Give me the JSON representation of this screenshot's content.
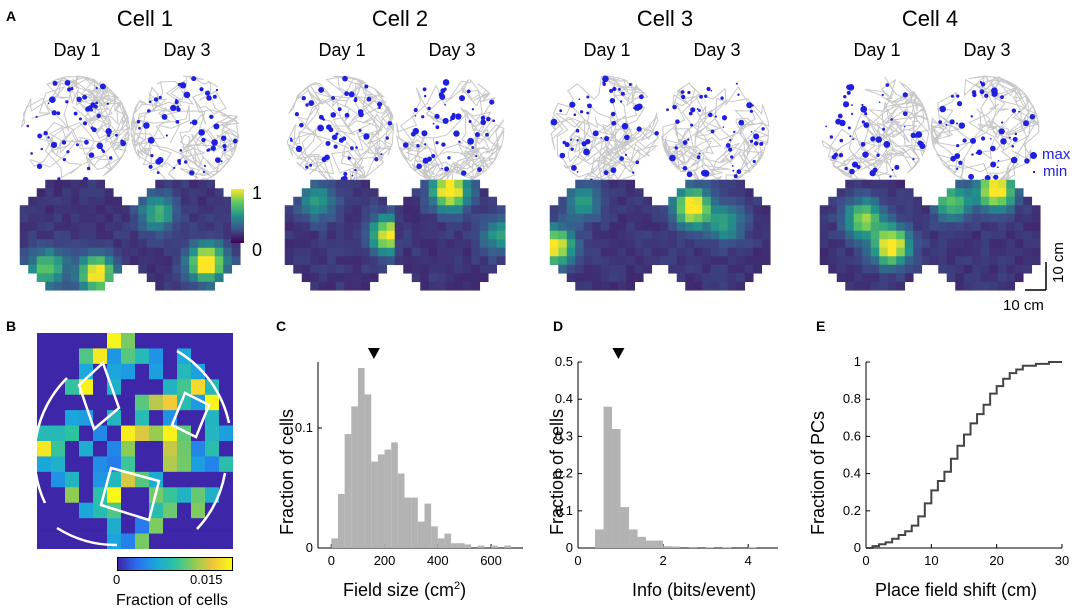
{
  "panel_labels": {
    "a": "A",
    "b": "B",
    "c": "C",
    "d": "D",
    "e": "E"
  },
  "cells": [
    {
      "title": "Cell 1",
      "day1": "Day 1",
      "day3": "Day 3"
    },
    {
      "title": "Cell 2",
      "day1": "Day 1",
      "day3": "Day 3"
    },
    {
      "title": "Cell 3",
      "day1": "Day 1",
      "day3": "Day 3"
    },
    {
      "title": "Cell 4",
      "day1": "Day 1",
      "day3": "Day 3"
    }
  ],
  "event_legend": {
    "max": "max",
    "min": "min"
  },
  "colorbar_a": {
    "max_label": "1",
    "min_label": "0"
  },
  "scale_bar": {
    "vertical": "10 cm",
    "horizontal": "10 cm"
  },
  "colorbar_b": {
    "min_label": "0",
    "max_label": "0.015",
    "title": "Fraction of cells"
  },
  "colors": {
    "trajectory": "#c8c8c8",
    "events": "#1f1fe0",
    "hist": "#b3b3b3",
    "cdf": "#444444"
  },
  "chart_data": [
    {
      "id": "C",
      "type": "bar",
      "xlabel": "Field size (cm",
      "xlabel_sup": "2",
      "xlabel_end": ")",
      "ylabel": "Fraction of cells",
      "xlim": [
        -50,
        720
      ],
      "ylim": [
        0,
        0.155
      ],
      "xticks": [
        "0",
        "200",
        "400",
        "600"
      ],
      "yticks": [
        "0",
        "0.1"
      ],
      "bin_width": 25,
      "bin_starts": [
        0,
        25,
        50,
        75,
        100,
        125,
        150,
        175,
        200,
        225,
        250,
        275,
        300,
        325,
        350,
        375,
        400,
        425,
        450,
        475,
        500,
        525,
        550,
        575,
        600,
        625,
        650,
        675
      ],
      "values": [
        0.008,
        0.045,
        0.095,
        0.118,
        0.15,
        0.128,
        0.072,
        0.078,
        0.082,
        0.088,
        0.062,
        0.042,
        0.042,
        0.022,
        0.037,
        0.018,
        0.008,
        0.012,
        0.004,
        0.004,
        0.003,
        0.0,
        0.002,
        0.0,
        0.002,
        0.0,
        0.002,
        0.0
      ],
      "median_marker": 160
    },
    {
      "id": "D",
      "type": "bar",
      "xlabel": "Info (bits/event)",
      "ylabel": "Fraction of cells",
      "xlim": [
        0,
        4.7
      ],
      "ylim": [
        0,
        0.5
      ],
      "xticks": [
        "0",
        "2",
        "4"
      ],
      "yticks": [
        "0",
        "0.1",
        "0.2",
        "0.3",
        "0.4",
        "0.5"
      ],
      "bin_width": 0.2,
      "bin_starts": [
        0.4,
        0.6,
        0.8,
        1.0,
        1.2,
        1.4,
        1.6,
        1.8,
        2.0,
        2.2,
        2.4,
        2.6,
        2.8,
        3.0,
        3.2,
        3.4,
        3.6,
        3.8,
        4.0,
        4.2
      ],
      "values": [
        0.05,
        0.38,
        0.32,
        0.11,
        0.05,
        0.03,
        0.02,
        0.02,
        0.005,
        0.004,
        0.0,
        0.003,
        0.0,
        0.002,
        0.0,
        0.002,
        0.0,
        0.0,
        0.002,
        0.0
      ],
      "median_marker": 0.95
    },
    {
      "id": "E",
      "type": "line",
      "xlabel": "Place field shift (cm)",
      "ylabel": "Fraction of PCs",
      "xlim": [
        0,
        30
      ],
      "ylim": [
        0,
        1
      ],
      "xticks": [
        "0",
        "10",
        "20",
        "30"
      ],
      "yticks": [
        "0",
        "0.2",
        "0.4",
        "0.6",
        "0.8",
        "1"
      ],
      "x": [
        0,
        1,
        2,
        3,
        4,
        5,
        6,
        7,
        8,
        9,
        10,
        11,
        12,
        13,
        14,
        15,
        16,
        17,
        18,
        19,
        20,
        21,
        22,
        23,
        24,
        25,
        26,
        27,
        28,
        30
      ],
      "y": [
        0,
        0.01,
        0.02,
        0.03,
        0.05,
        0.07,
        0.09,
        0.12,
        0.17,
        0.24,
        0.31,
        0.36,
        0.41,
        0.48,
        0.55,
        0.61,
        0.67,
        0.72,
        0.77,
        0.83,
        0.87,
        0.91,
        0.94,
        0.96,
        0.98,
        0.98,
        0.99,
        0.99,
        1.0,
        1.0
      ]
    }
  ]
}
